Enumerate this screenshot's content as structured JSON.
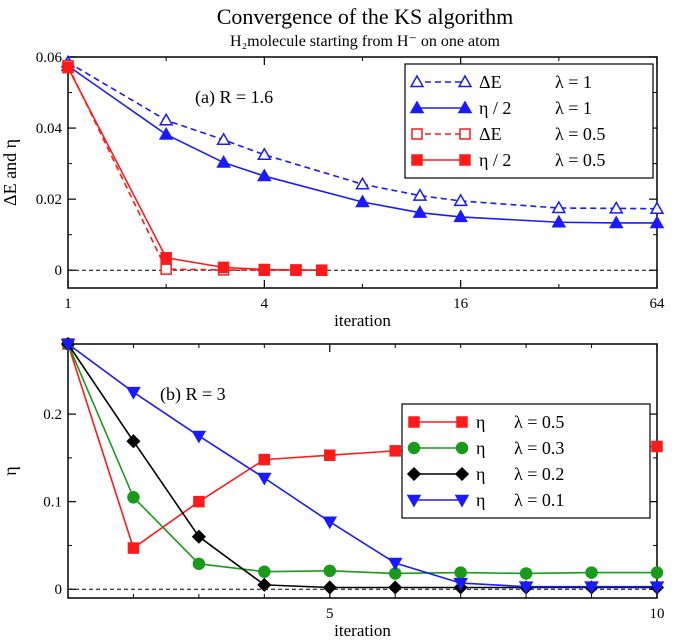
{
  "figure": {
    "title": "Convergence of the KS algorithm",
    "subtitle": "H₂molecule starting from H⁻ on one atom"
  },
  "colors": {
    "blue": "#1a1aff",
    "red": "#ff1a1a",
    "green": "#1a9a1a",
    "black": "#000000",
    "reference_line": "#000000"
  },
  "chart_data": [
    {
      "type": "line",
      "panel_label": "(a)   R = 1.6",
      "xlabel": "iteration",
      "ylabel": "ΔE  and  η",
      "xscale": "log2",
      "xlim": [
        1,
        64
      ],
      "ylim": [
        -0.005,
        0.06
      ],
      "xticks": [
        1,
        4,
        16,
        64
      ],
      "xtick_labels": [
        "1",
        "4",
        "16",
        "64"
      ],
      "yticks": [
        0,
        0.02,
        0.04,
        0.06
      ],
      "ytick_labels": [
        "0",
        "0.02",
        "0.04",
        "0.06"
      ],
      "reference_line_y": 0,
      "legend_position": "top-right",
      "series": [
        {
          "name": "ΔE",
          "lambda": "λ = 1",
          "color": "blue",
          "marker": "triangle-up-open",
          "dash": true,
          "x": [
            1,
            2,
            3,
            4,
            8,
            12,
            16,
            32,
            48,
            64
          ],
          "y": [
            0.0585,
            0.0422,
            0.0367,
            0.0325,
            0.0242,
            0.021,
            0.0195,
            0.0175,
            0.0174,
            0.0173
          ]
        },
        {
          "name": "η / 2",
          "lambda": "λ = 1",
          "color": "blue",
          "marker": "triangle-up-filled",
          "dash": false,
          "x": [
            1,
            2,
            3,
            4,
            8,
            12,
            16,
            32,
            48,
            64
          ],
          "y": [
            0.0575,
            0.0382,
            0.0303,
            0.0265,
            0.0192,
            0.0162,
            0.015,
            0.0135,
            0.0133,
            0.0133
          ]
        },
        {
          "name": "ΔE",
          "lambda": "λ = 0.5",
          "color": "red",
          "marker": "square-open",
          "dash": true,
          "x": [
            1,
            2,
            3,
            4,
            5,
            6
          ],
          "y": [
            0.0575,
            0.0003,
            0.0001,
            0.0,
            0.0,
            0.0
          ]
        },
        {
          "name": "η / 2",
          "lambda": "λ = 0.5",
          "color": "red",
          "marker": "square-filled",
          "dash": false,
          "x": [
            1,
            2,
            3,
            4,
            5,
            6
          ],
          "y": [
            0.057,
            0.0035,
            0.0008,
            0.0002,
            0.0001,
            0.0
          ]
        }
      ]
    },
    {
      "type": "line",
      "panel_label": "(b)   R = 3",
      "xlabel": "iteration",
      "ylabel": "η",
      "xscale": "linear",
      "xlim": [
        1,
        10
      ],
      "ylim": [
        -0.01,
        0.28
      ],
      "xticks": [
        5,
        10
      ],
      "xtick_labels": [
        "5",
        "10"
      ],
      "yticks": [
        0,
        0.1,
        0.2
      ],
      "ytick_labels": [
        "0",
        "0.1",
        "0.2"
      ],
      "reference_line_y": 0,
      "legend_position": "center-right",
      "series": [
        {
          "name": "η",
          "lambda": "λ = 0.5",
          "color": "red",
          "marker": "square-filled",
          "dash": false,
          "x": [
            1,
            2,
            3,
            4,
            5,
            6,
            10
          ],
          "y": [
            0.28,
            0.047,
            0.1,
            0.148,
            0.153,
            0.158,
            0.163
          ]
        },
        {
          "name": "η",
          "lambda": "λ = 0.3",
          "color": "green",
          "marker": "circle-filled",
          "dash": false,
          "x": [
            1,
            2,
            3,
            4,
            5,
            6,
            7,
            8,
            9,
            10
          ],
          "y": [
            0.28,
            0.105,
            0.029,
            0.02,
            0.021,
            0.018,
            0.019,
            0.018,
            0.019,
            0.019
          ]
        },
        {
          "name": "η",
          "lambda": "λ = 0.2",
          "color": "black",
          "marker": "diamond-filled",
          "dash": false,
          "x": [
            1,
            2,
            3,
            4,
            5,
            6,
            7,
            8,
            9,
            10
          ],
          "y": [
            0.28,
            0.169,
            0.06,
            0.005,
            0.002,
            0.002,
            0.002,
            0.002,
            0.002,
            0.002
          ]
        },
        {
          "name": "η",
          "lambda": "λ = 0.1",
          "color": "blue",
          "marker": "triangle-down-filled",
          "dash": false,
          "x": [
            1,
            2,
            3,
            4,
            5,
            6,
            7,
            8,
            9,
            10
          ],
          "y": [
            0.28,
            0.225,
            0.175,
            0.127,
            0.077,
            0.03,
            0.007,
            0.003,
            0.003,
            0.003
          ]
        }
      ]
    }
  ]
}
